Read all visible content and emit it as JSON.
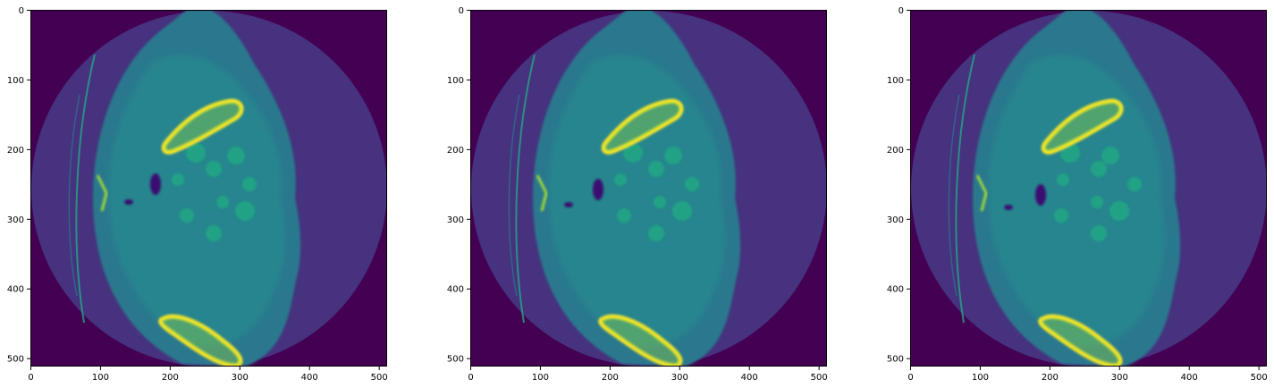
{
  "colors": {
    "background": "#440154",
    "fov_disc": "#46327e",
    "soft_tissue": "#2a788e",
    "soft_tissue_inner": "#25858e",
    "organ": "#22a884",
    "bright_organ": "#35b779",
    "bone": "#fde725",
    "bone_mid": "#a0da39",
    "gas": "#3b0f70"
  },
  "panels": [
    {
      "x_ticks": [
        0,
        100,
        200,
        300,
        400,
        500
      ],
      "y_ticks": [
        0,
        100,
        200,
        300,
        400,
        500
      ],
      "x_tick_labels": [
        "0",
        "100",
        "200",
        "300",
        "400",
        "500"
      ],
      "y_tick_labels": [
        "0",
        "100",
        "200",
        "300",
        "400",
        "500"
      ]
    },
    {
      "x_ticks": [
        0,
        100,
        200,
        300,
        400,
        500
      ],
      "y_ticks": [
        0,
        100,
        200,
        300,
        400,
        500
      ],
      "x_tick_labels": [
        "0",
        "100",
        "200",
        "300",
        "400",
        "500"
      ],
      "y_tick_labels": [
        "0",
        "100",
        "200",
        "300",
        "400",
        "500"
      ]
    },
    {
      "x_ticks": [
        0,
        100,
        200,
        300,
        400,
        500
      ],
      "y_ticks": [
        0,
        100,
        200,
        300,
        400,
        500
      ],
      "x_tick_labels": [
        "0",
        "100",
        "200",
        "300",
        "400",
        "500"
      ],
      "y_tick_labels": [
        "0",
        "100",
        "200",
        "300",
        "400",
        "500"
      ]
    }
  ]
}
